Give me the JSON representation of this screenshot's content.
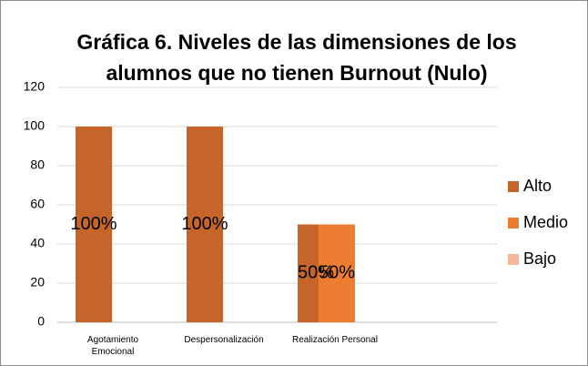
{
  "chart_data": {
    "type": "bar",
    "title": "Gráfica 6. Niveles de las dimensiones de los alumnos que no tienen Burnout (Nulo)",
    "categories": [
      "Agotamiento Emocional",
      "Despersonalización",
      "Realización Personal"
    ],
    "series": [
      {
        "name": "Alto",
        "color": "#c5652a",
        "values": [
          100,
          100,
          50
        ],
        "value_labels": [
          "100%",
          "100%",
          "50%"
        ]
      },
      {
        "name": "Medio",
        "color": "#ed7d31",
        "values": [
          0,
          0,
          50
        ],
        "value_labels": [
          null,
          null,
          "50%"
        ]
      },
      {
        "name": "Bajo",
        "color": "#f4b99a",
        "values": [
          0,
          0,
          0
        ],
        "value_labels": [
          null,
          null,
          null
        ]
      }
    ],
    "ylim": [
      0,
      120
    ],
    "yticks": [
      0,
      20,
      40,
      60,
      80,
      100,
      120
    ],
    "grid": true,
    "legend": "right"
  }
}
